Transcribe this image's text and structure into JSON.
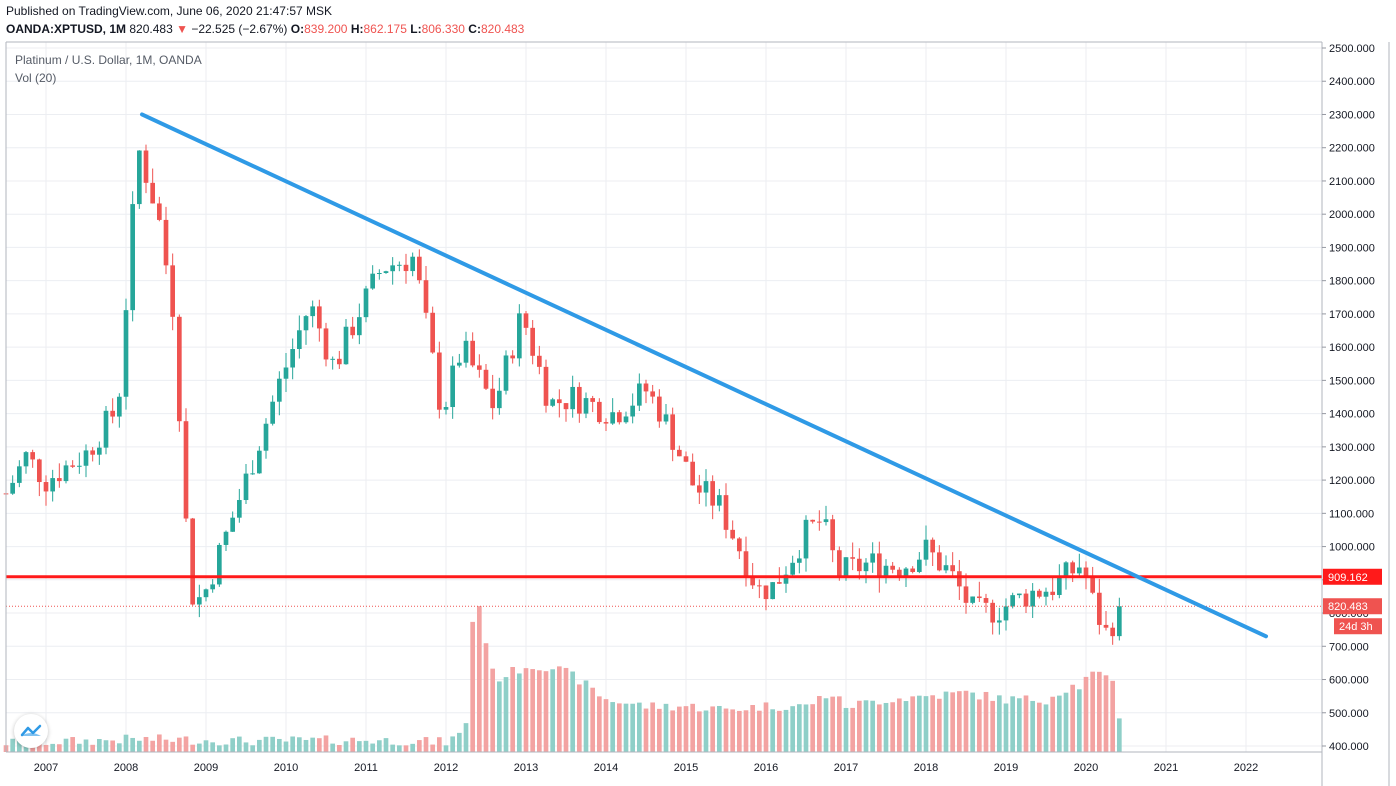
{
  "header": {
    "published": "Published on TradingView.com, June 06, 2020 21:47:57 MSK",
    "symbol": "OANDA:XPTUSD, 1M",
    "last": "820.483",
    "arrow": "▼",
    "change": "−22.525 (−2.67%)",
    "o_label": "O:",
    "o_value": "839.200",
    "h_label": "H:",
    "h_value": "862.175",
    "l_label": "L:",
    "l_value": "806.330",
    "c_label": "C:",
    "c_value": "820.483"
  },
  "legend": {
    "title": "Platinum / U.S. Dollar, 1M, OANDA",
    "indicator": "Vol (20)"
  },
  "colors": {
    "up": "#26a69a",
    "down": "#ef5350",
    "up_volume": "#8fcfc8",
    "down_volume": "#f3a3a2",
    "trendline": "#2f9ae6",
    "horizontal": "#ff1a1a",
    "grid": "#eceef2",
    "axis_text": "#131722"
  },
  "chart_data": {
    "type": "candlestick",
    "y_axis": {
      "min": 400,
      "max": 2500,
      "step": 100,
      "tick_labels": [
        "400.000",
        "500.000",
        "600.000",
        "700.000",
        "800.000",
        "900.000",
        "1000.000",
        "1100.000",
        "1200.000",
        "1300.000",
        "1400.000",
        "1500.000",
        "1600.000",
        "1700.000",
        "1800.000",
        "1900.000",
        "2000.000",
        "2100.000",
        "2200.000",
        "2300.000",
        "2400.000",
        "2500.000"
      ],
      "volume_baseline": 400
    },
    "x_axis": {
      "start_year": 2006.5,
      "end_year": 2022.95,
      "tick_labels": [
        "2007",
        "2008",
        "2009",
        "2010",
        "2011",
        "2012",
        "2013",
        "2014",
        "2015",
        "2016",
        "2017",
        "2018",
        "2019",
        "2020",
        "2021",
        "2022"
      ]
    },
    "grid": true,
    "price_labels": [
      {
        "value": 909.162,
        "label": "909.162",
        "color": "#ff1a1a"
      },
      {
        "value": 820.483,
        "label": "820.483",
        "color": "#ef5350"
      }
    ],
    "countdown_label": "24d 3h",
    "horizontal_line": {
      "value": 909.162
    },
    "trendline": {
      "from": {
        "t": 2008.2,
        "price": 2300
      },
      "to": {
        "t": 2022.25,
        "price": 730
      }
    },
    "last_price": 820.483,
    "anchors": [
      [
        2006.5,
        1160
      ],
      [
        2006.75,
        1270
      ],
      [
        2007.0,
        1200
      ],
      [
        2007.5,
        1280
      ],
      [
        2007.9,
        1420
      ],
      [
        2008.15,
        2200
      ],
      [
        2008.4,
        2000
      ],
      [
        2008.6,
        1700
      ],
      [
        2008.8,
        860
      ],
      [
        2008.95,
        840
      ],
      [
        2009.2,
        1000
      ],
      [
        2009.5,
        1200
      ],
      [
        2009.9,
        1480
      ],
      [
        2010.3,
        1730
      ],
      [
        2010.6,
        1540
      ],
      [
        2010.9,
        1700
      ],
      [
        2011.2,
        1840
      ],
      [
        2011.6,
        1870
      ],
      [
        2011.95,
        1400
      ],
      [
        2012.2,
        1600
      ],
      [
        2012.6,
        1420
      ],
      [
        2012.95,
        1700
      ],
      [
        2013.3,
        1430
      ],
      [
        2013.6,
        1450
      ],
      [
        2014.1,
        1400
      ],
      [
        2014.5,
        1470
      ],
      [
        2014.7,
        1400
      ],
      [
        2015.1,
        1180
      ],
      [
        2015.4,
        1130
      ],
      [
        2015.7,
        980
      ],
      [
        2015.9,
        870
      ],
      [
        2016.1,
        880
      ],
      [
        2016.5,
        1040
      ],
      [
        2016.7,
        1080
      ],
      [
        2016.9,
        920
      ],
      [
        2017.3,
        950
      ],
      [
        2017.7,
        940
      ],
      [
        2018.0,
        990
      ],
      [
        2018.3,
        920
      ],
      [
        2018.6,
        800
      ],
      [
        2018.9,
        810
      ],
      [
        2019.3,
        860
      ],
      [
        2019.6,
        880
      ],
      [
        2019.95,
        950
      ],
      [
        2020.1,
        820
      ],
      [
        2020.25,
        740
      ],
      [
        2020.45,
        820
      ]
    ],
    "volume_anchors": [
      [
        2006.5,
        410
      ],
      [
        2007.5,
        415
      ],
      [
        2008.0,
        420
      ],
      [
        2008.5,
        420
      ],
      [
        2009.5,
        415
      ],
      [
        2011.0,
        418
      ],
      [
        2012.0,
        412
      ],
      [
        2012.22,
        440
      ],
      [
        2012.3,
        530
      ],
      [
        2012.35,
        900
      ],
      [
        2012.45,
        780
      ],
      [
        2012.6,
        600
      ],
      [
        2013.0,
        640
      ],
      [
        2013.3,
        640
      ],
      [
        2013.6,
        610
      ],
      [
        2014.0,
        540
      ],
      [
        2014.5,
        520
      ],
      [
        2015.0,
        520
      ],
      [
        2015.5,
        510
      ],
      [
        2016.0,
        520
      ],
      [
        2016.5,
        520
      ],
      [
        2016.8,
        560
      ],
      [
        2017.0,
        520
      ],
      [
        2017.5,
        540
      ],
      [
        2018.0,
        550
      ],
      [
        2018.5,
        560
      ],
      [
        2019.0,
        540
      ],
      [
        2019.5,
        540
      ],
      [
        2019.8,
        580
      ],
      [
        2019.95,
        580
      ],
      [
        2020.05,
        620
      ],
      [
        2020.15,
        610
      ],
      [
        2020.35,
        600
      ],
      [
        2020.45,
        440
      ]
    ]
  }
}
